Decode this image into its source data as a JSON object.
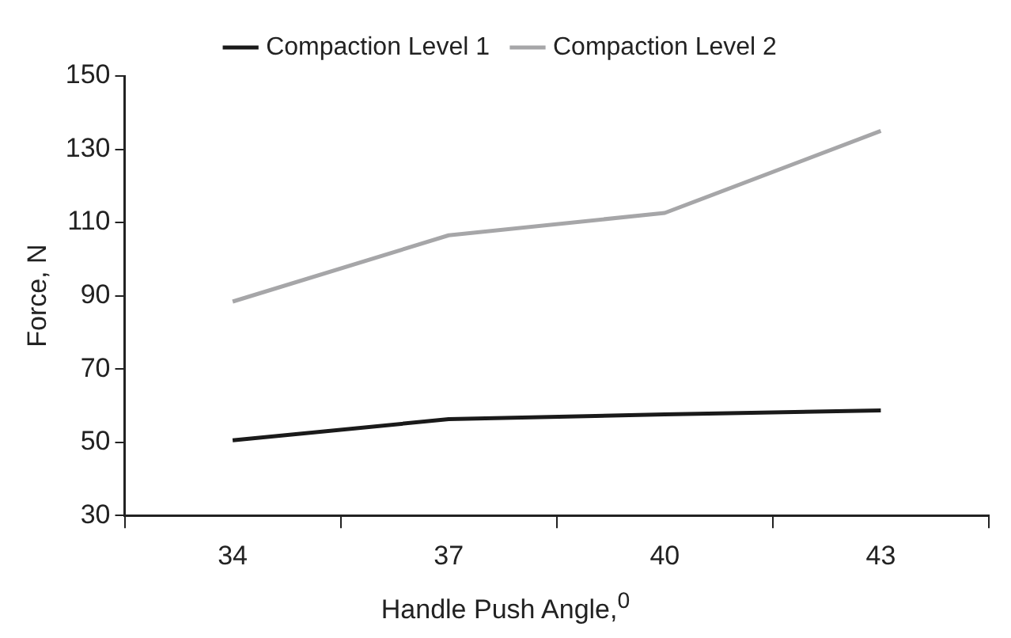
{
  "chart_data": {
    "type": "line",
    "xlabel": "Handle Push Angle,$^{0}$",
    "ylabel": "Force, N",
    "categories": [
      "34",
      "37",
      "40",
      "43"
    ],
    "series": [
      {
        "name": "Compaction Level 1",
        "color": "#1a1a1a",
        "values": [
          50.5,
          56.3,
          57.6,
          58.7
        ]
      },
      {
        "name": "Compaction Level 2",
        "color": "#a6a6a8",
        "values": [
          88.4,
          106.5,
          112.6,
          135
        ]
      }
    ],
    "ylim": [
      30,
      150
    ],
    "yticks": [
      30,
      50,
      70,
      90,
      110,
      130,
      150
    ],
    "grid": false,
    "legend": "top",
    "marker": "none",
    "line_style": "solid"
  }
}
